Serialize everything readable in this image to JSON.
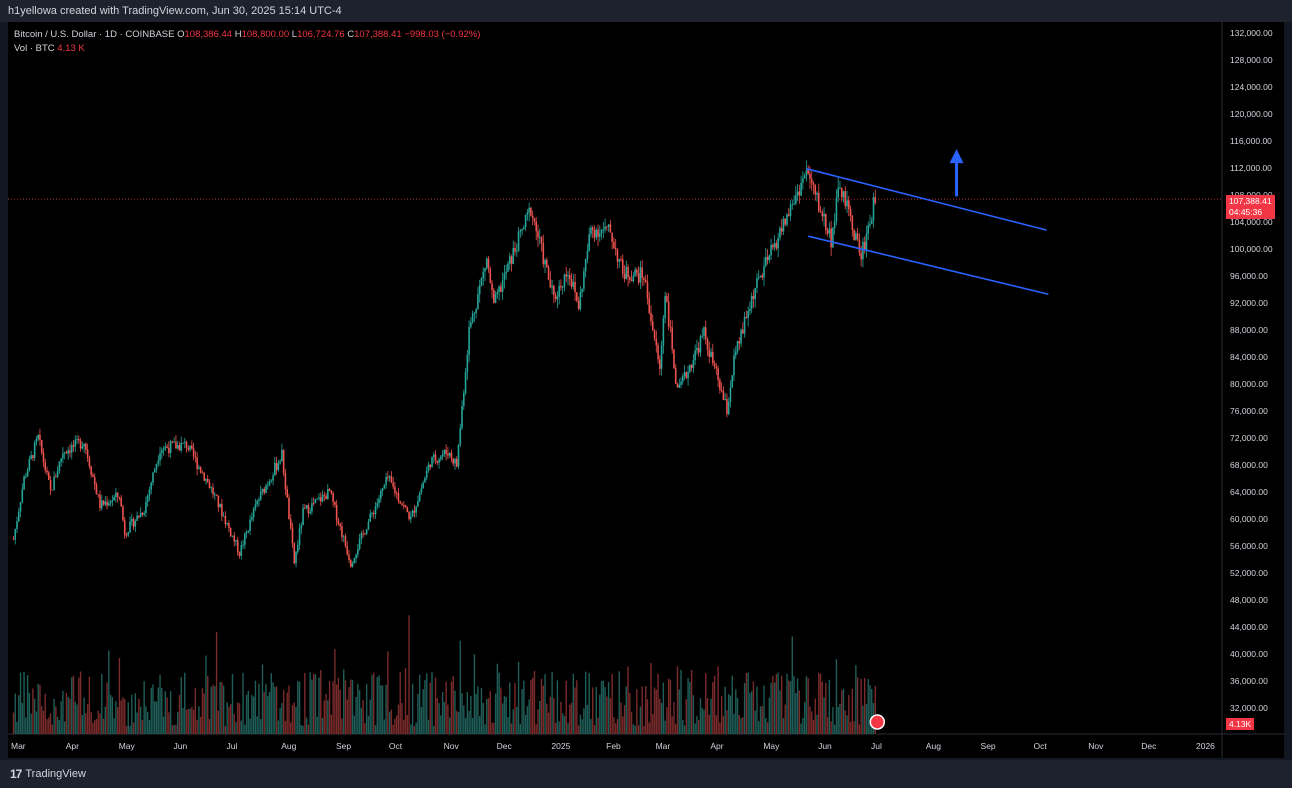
{
  "header": {
    "caption": "h1yellowa created with TradingView.com, Jun 30, 2025 15:14 UTC-4"
  },
  "legend": {
    "symbol": "Bitcoin / U.S. Dollar · 1D · COINBASE",
    "open_label": "O",
    "open": "108,386.44",
    "high_label": "H",
    "high": "108,800.00",
    "low_label": "L",
    "low": "106,724.76",
    "close_label": "C",
    "close": "107,388.41",
    "change": "−998.03 (−0.92%)",
    "vol_label": "Vol · BTC",
    "vol_value": "4.13 K"
  },
  "price_tag": {
    "price": "107,388.41",
    "countdown": "04:45:36"
  },
  "volume_tag": "4.13K",
  "footer": {
    "brand": "TradingView",
    "brand_mark": "17"
  },
  "colors": {
    "up": "#26a69a",
    "down": "#ef5350",
    "channel": "#2962ff",
    "last_price": "#f23645",
    "background": "#000000"
  },
  "chart_data": {
    "type": "candlestick",
    "y_axis_ticks": [
      "132,000.00",
      "128,000.00",
      "124,000.00",
      "120,000.00",
      "116,000.00",
      "112,000.00",
      "108,000.00",
      "104,000.00",
      "100,000.00",
      "96,000.00",
      "92,000.00",
      "88,000.00",
      "84,000.00",
      "80,000.00",
      "76,000.00",
      "72,000.00",
      "68,000.00",
      "64,000.00",
      "60,000.00",
      "56,000.00",
      "52,000.00",
      "48,000.00",
      "44,000.00",
      "40,000.00",
      "36,000.00",
      "32,000.00"
    ],
    "y_ticks_values": [
      132000,
      128000,
      124000,
      120000,
      116000,
      112000,
      108000,
      104000,
      100000,
      96000,
      92000,
      88000,
      84000,
      80000,
      76000,
      72000,
      68000,
      64000,
      60000,
      56000,
      52000,
      48000,
      44000,
      40000,
      36000,
      32000
    ],
    "x_axis_ticks": [
      "Mar",
      "Apr",
      "May",
      "Jun",
      "Jul",
      "Aug",
      "Sep",
      "Oct",
      "Nov",
      "Dec",
      "2025",
      "Feb",
      "Mar",
      "Apr",
      "May",
      "Jun",
      "Jul",
      "Aug",
      "Sep",
      "Oct",
      "Nov",
      "Dec",
      "2026"
    ],
    "x_ticks_dates": [
      "2024-03-01",
      "2024-04-01",
      "2024-05-01",
      "2024-06-01",
      "2024-07-01",
      "2024-08-01",
      "2024-09-01",
      "2024-10-01",
      "2024-11-01",
      "2024-12-01",
      "2025-01-01",
      "2025-02-01",
      "2025-03-01",
      "2025-04-01",
      "2025-05-01",
      "2025-06-01",
      "2025-07-01",
      "2025-08-01",
      "2025-09-01",
      "2025-10-01",
      "2025-11-01",
      "2025-12-01",
      "2026-01-01"
    ],
    "last_price": 107388.41,
    "price_path": [
      [
        "2024-02-28",
        57000
      ],
      [
        "2024-03-05",
        66000
      ],
      [
        "2024-03-13",
        72000
      ],
      [
        "2024-03-20",
        64000
      ],
      [
        "2024-03-27",
        70000
      ],
      [
        "2024-04-08",
        71500
      ],
      [
        "2024-04-17",
        62000
      ],
      [
        "2024-04-28",
        63500
      ],
      [
        "2024-05-01",
        58000
      ],
      [
        "2024-05-12",
        61500
      ],
      [
        "2024-05-21",
        70500
      ],
      [
        "2024-06-05",
        71000
      ],
      [
        "2024-06-18",
        65000
      ],
      [
        "2024-06-25",
        61000
      ],
      [
        "2024-07-05",
        55000
      ],
      [
        "2024-07-15",
        62500
      ],
      [
        "2024-07-29",
        69500
      ],
      [
        "2024-08-05",
        53500
      ],
      [
        "2024-08-10",
        61000
      ],
      [
        "2024-08-25",
        64000
      ],
      [
        "2024-09-06",
        53500
      ],
      [
        "2024-09-15",
        59000
      ],
      [
        "2024-09-27",
        66000
      ],
      [
        "2024-10-10",
        60000
      ],
      [
        "2024-10-21",
        68500
      ],
      [
        "2024-10-31",
        70000
      ],
      [
        "2024-11-05",
        68000
      ],
      [
        "2024-11-12",
        88000
      ],
      [
        "2024-11-22",
        98500
      ],
      [
        "2024-11-26",
        91500
      ],
      [
        "2024-12-05",
        98000
      ],
      [
        "2024-12-17",
        106000
      ],
      [
        "2024-12-30",
        92500
      ],
      [
        "2025-01-07",
        97000
      ],
      [
        "2025-01-13",
        91500
      ],
      [
        "2025-01-20",
        103000
      ],
      [
        "2025-01-31",
        102500
      ],
      [
        "2025-02-07",
        96500
      ],
      [
        "2025-02-19",
        96000
      ],
      [
        "2025-02-28",
        82000
      ],
      [
        "2025-03-03",
        94000
      ],
      [
        "2025-03-10",
        78500
      ],
      [
        "2025-03-25",
        87500
      ],
      [
        "2025-04-07",
        76000
      ],
      [
        "2025-04-11",
        83500
      ],
      [
        "2025-04-22",
        93500
      ],
      [
        "2025-05-08",
        103000
      ],
      [
        "2025-05-22",
        111500
      ],
      [
        "2025-06-05",
        101500
      ],
      [
        "2025-06-10",
        109500
      ],
      [
        "2025-06-22",
        99000
      ],
      [
        "2025-06-30",
        107388.41
      ]
    ],
    "channel_upper": {
      "start": [
        "2025-05-22",
        111900
      ],
      "end": [
        "2025-10-05",
        102800
      ]
    },
    "channel_lower": {
      "start": [
        "2025-05-23",
        101900
      ],
      "end": [
        "2025-10-06",
        93300
      ]
    },
    "arrow": {
      "at": "2025-08-15",
      "from": 107800,
      "to": 114800
    }
  }
}
